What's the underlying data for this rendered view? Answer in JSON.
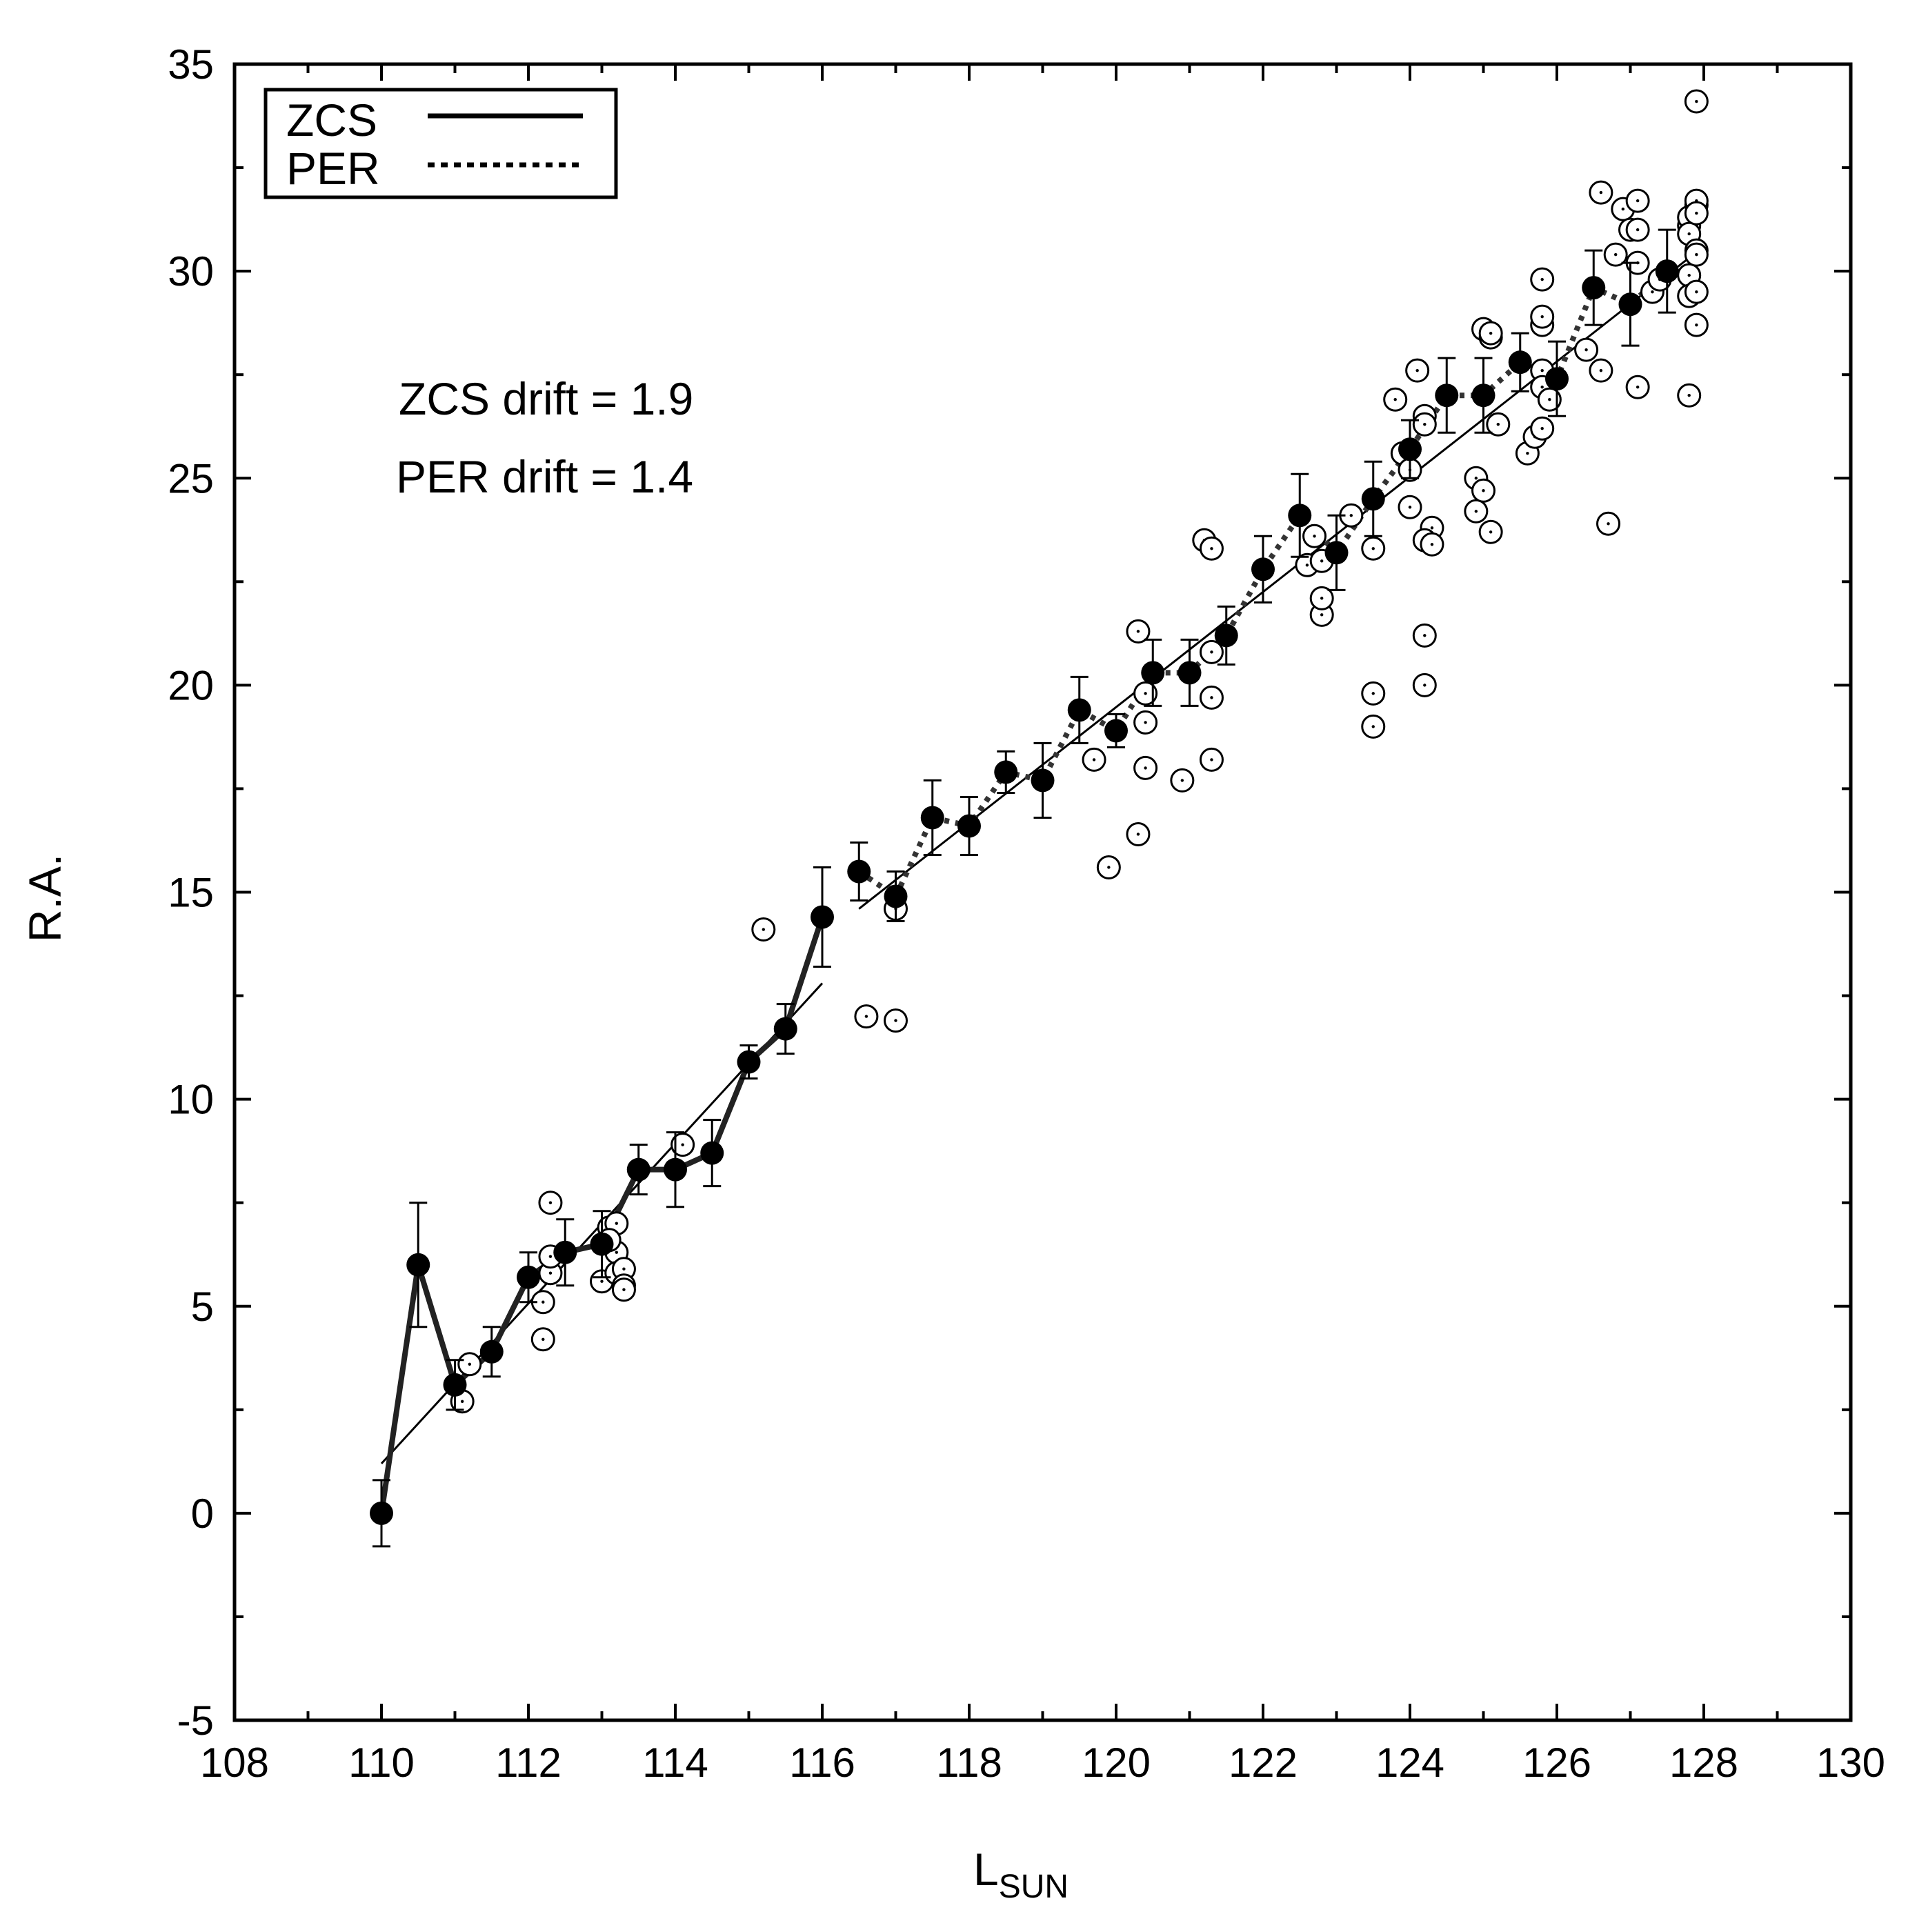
{
  "chart_data": {
    "type": "scatter",
    "xlabel": "L",
    "xlabel_sub": "SUN",
    "ylabel": "R.A.",
    "xlim": [
      108,
      130
    ],
    "ylim": [
      -5,
      35
    ],
    "xticks": [
      "108",
      "110",
      "112",
      "114",
      "116",
      "118",
      "120",
      "122",
      "124",
      "126",
      "128",
      "130"
    ],
    "yticks": [
      "-5",
      "0",
      "5",
      "10",
      "15",
      "20",
      "25",
      "30",
      "35"
    ],
    "legend": {
      "placement": "top-left",
      "entries": [
        {
          "label": "ZCS",
          "style": "solid"
        },
        {
          "label": "PER",
          "style": "dotted"
        }
      ]
    },
    "annotations": [
      "ZCS drift = 1.9",
      "PER drift = 1.4"
    ],
    "zcs_means": [
      {
        "x": 110.0,
        "y": 0.0,
        "err": 0.8
      },
      {
        "x": 110.5,
        "y": 6.0,
        "err": 1.5
      },
      {
        "x": 111.0,
        "y": 3.1,
        "err": 0.6
      },
      {
        "x": 111.5,
        "y": 3.9,
        "err": 0.6
      },
      {
        "x": 112.0,
        "y": 5.7,
        "err": 0.6
      },
      {
        "x": 112.5,
        "y": 6.3,
        "err": 0.8
      },
      {
        "x": 113.0,
        "y": 6.5,
        "err": 0.8
      },
      {
        "x": 113.5,
        "y": 8.3,
        "err": 0.6
      },
      {
        "x": 114.0,
        "y": 8.3,
        "err": 0.9
      },
      {
        "x": 114.5,
        "y": 8.7,
        "err": 0.8
      },
      {
        "x": 115.0,
        "y": 10.9,
        "err": 0.4
      },
      {
        "x": 115.5,
        "y": 11.7,
        "err": 0.6
      },
      {
        "x": 116.0,
        "y": 14.4,
        "err": 1.2
      }
    ],
    "per_means": [
      {
        "x": 116.5,
        "y": 15.5,
        "err": 0.7
      },
      {
        "x": 117.0,
        "y": 14.9,
        "err": 0.6
      },
      {
        "x": 117.5,
        "y": 16.8,
        "err": 0.9
      },
      {
        "x": 118.0,
        "y": 16.6,
        "err": 0.7
      },
      {
        "x": 118.5,
        "y": 17.9,
        "err": 0.5
      },
      {
        "x": 119.0,
        "y": 17.7,
        "err": 0.9
      },
      {
        "x": 119.5,
        "y": 19.4,
        "err": 0.8
      },
      {
        "x": 120.0,
        "y": 18.9,
        "err": 0.4
      },
      {
        "x": 120.5,
        "y": 20.3,
        "err": 0.8
      },
      {
        "x": 121.0,
        "y": 20.3,
        "err": 0.8
      },
      {
        "x": 121.5,
        "y": 21.2,
        "err": 0.7
      },
      {
        "x": 122.0,
        "y": 22.8,
        "err": 0.8
      },
      {
        "x": 122.5,
        "y": 24.1,
        "err": 1.0
      },
      {
        "x": 123.0,
        "y": 23.2,
        "err": 0.9
      },
      {
        "x": 123.5,
        "y": 24.5,
        "err": 0.9
      },
      {
        "x": 124.0,
        "y": 25.7,
        "err": 0.7
      },
      {
        "x": 124.5,
        "y": 27.0,
        "err": 0.9
      },
      {
        "x": 125.0,
        "y": 27.0,
        "err": 0.9
      },
      {
        "x": 125.5,
        "y": 27.8,
        "err": 0.7
      },
      {
        "x": 126.0,
        "y": 27.4,
        "err": 0.9
      },
      {
        "x": 126.5,
        "y": 29.6,
        "err": 0.9
      },
      {
        "x": 127.0,
        "y": 29.2,
        "err": 1.0
      },
      {
        "x": 127.5,
        "y": 30.0,
        "err": 1.0
      }
    ],
    "zcs_fit": {
      "x": [
        110.0,
        116.0
      ],
      "y": [
        1.2,
        12.8
      ]
    },
    "per_fit": {
      "x": [
        116.5,
        128.0
      ],
      "y": [
        14.6,
        30.6
      ]
    },
    "individual": [
      [
        111.1,
        2.7
      ],
      [
        111.2,
        3.6
      ],
      [
        112.2,
        5.1
      ],
      [
        112.3,
        5.8
      ],
      [
        112.2,
        4.2
      ],
      [
        112.3,
        6.2
      ],
      [
        112.3,
        7.5
      ],
      [
        113.0,
        5.6
      ],
      [
        113.1,
        6.9
      ],
      [
        113.2,
        7.0
      ],
      [
        113.2,
        6.3
      ],
      [
        113.2,
        5.8
      ],
      [
        113.3,
        5.9
      ],
      [
        113.3,
        5.5
      ],
      [
        113.3,
        5.4
      ],
      [
        113.1,
        6.6
      ],
      [
        114.1,
        8.9
      ],
      [
        115.2,
        14.1
      ],
      [
        116.6,
        12.0
      ],
      [
        117.0,
        11.9
      ],
      [
        117.0,
        14.6
      ],
      [
        119.7,
        18.2
      ],
      [
        119.9,
        15.6
      ],
      [
        120.3,
        16.4
      ],
      [
        120.3,
        21.3
      ],
      [
        120.4,
        19.1
      ],
      [
        120.4,
        18.0
      ],
      [
        120.4,
        19.8
      ],
      [
        120.9,
        17.7
      ],
      [
        121.2,
        23.5
      ],
      [
        121.3,
        23.3
      ],
      [
        121.3,
        19.7
      ],
      [
        121.3,
        18.2
      ],
      [
        121.3,
        20.8
      ],
      [
        122.6,
        22.9
      ],
      [
        122.7,
        23.6
      ],
      [
        122.8,
        21.7
      ],
      [
        122.8,
        22.1
      ],
      [
        122.8,
        23.0
      ],
      [
        123.2,
        24.1
      ],
      [
        123.5,
        23.3
      ],
      [
        123.5,
        19.8
      ],
      [
        123.5,
        19.0
      ],
      [
        123.8,
        26.9
      ],
      [
        123.9,
        25.6
      ],
      [
        124.0,
        25.2
      ],
      [
        124.0,
        24.3
      ],
      [
        124.1,
        27.6
      ],
      [
        124.2,
        26.5
      ],
      [
        124.2,
        26.3
      ],
      [
        124.3,
        23.8
      ],
      [
        124.2,
        23.5
      ],
      [
        124.3,
        23.4
      ],
      [
        124.2,
        21.2
      ],
      [
        124.2,
        20.0
      ],
      [
        124.9,
        25.0
      ],
      [
        124.9,
        24.2
      ],
      [
        125.0,
        24.7
      ],
      [
        125.1,
        23.7
      ],
      [
        125.0,
        28.6
      ],
      [
        125.1,
        28.4
      ],
      [
        125.1,
        28.5
      ],
      [
        125.2,
        26.3
      ],
      [
        125.6,
        25.6
      ],
      [
        125.7,
        26.0
      ],
      [
        125.8,
        26.2
      ],
      [
        125.8,
        27.6
      ],
      [
        125.8,
        27.2
      ],
      [
        125.8,
        28.7
      ],
      [
        125.8,
        28.9
      ],
      [
        125.8,
        29.8
      ],
      [
        125.9,
        26.9
      ],
      [
        126.4,
        28.1
      ],
      [
        126.6,
        27.6
      ],
      [
        126.6,
        31.9
      ],
      [
        126.7,
        23.9
      ],
      [
        126.8,
        30.4
      ],
      [
        126.9,
        31.5
      ],
      [
        127.0,
        31.0
      ],
      [
        127.1,
        31.7
      ],
      [
        127.1,
        30.2
      ],
      [
        127.1,
        31.0
      ],
      [
        127.1,
        27.2
      ],
      [
        127.3,
        29.5
      ],
      [
        127.4,
        29.8
      ],
      [
        127.8,
        31.1
      ],
      [
        127.8,
        31.3
      ],
      [
        127.8,
        30.9
      ],
      [
        127.8,
        29.9
      ],
      [
        127.8,
        29.4
      ],
      [
        127.8,
        27.0
      ],
      [
        127.9,
        31.6
      ],
      [
        127.9,
        31.7
      ],
      [
        127.9,
        31.4
      ],
      [
        127.9,
        30.5
      ],
      [
        127.9,
        30.4
      ],
      [
        127.9,
        29.5
      ],
      [
        127.9,
        28.7
      ],
      [
        127.9,
        34.1
      ]
    ]
  }
}
